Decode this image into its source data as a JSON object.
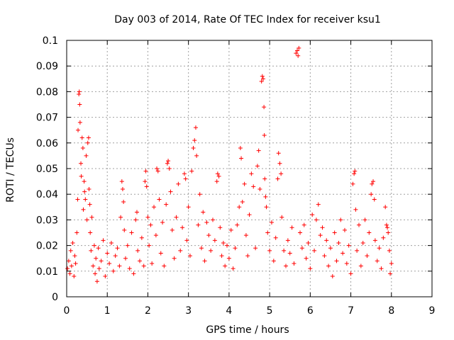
{
  "chart_data": {
    "type": "scatter",
    "title": "Day 003 of 2014, Rate Of TEC Index for receiver ksu1",
    "xlabel": "GPS time / hours",
    "ylabel": "ROTI / TECUs",
    "xlim": [
      0,
      9
    ],
    "ylim": [
      0,
      0.1
    ],
    "x_ticks": [
      "0",
      "1",
      "2",
      "3",
      "4",
      "5",
      "6",
      "7",
      "8",
      "9"
    ],
    "y_ticks": [
      "0",
      "0.01",
      "0.02",
      "0.03",
      "0.04",
      "0.05",
      "0.06",
      "0.07",
      "0.08",
      "0.09",
      "0.1"
    ],
    "grid": true,
    "marker": "+",
    "color": "#ff0000",
    "series": [
      {
        "name": "ROTI",
        "points": [
          [
            0.02,
            0.011
          ],
          [
            0.05,
            0.014
          ],
          [
            0.08,
            0.009
          ],
          [
            0.1,
            0.018
          ],
          [
            0.12,
            0.012
          ],
          [
            0.15,
            0.021
          ],
          [
            0.18,
            0.008
          ],
          [
            0.2,
            0.016
          ],
          [
            0.22,
            0.013
          ],
          [
            0.25,
            0.025
          ],
          [
            0.27,
            0.038
          ],
          [
            0.28,
            0.065
          ],
          [
            0.3,
            0.079
          ],
          [
            0.31,
            0.08
          ],
          [
            0.32,
            0.075
          ],
          [
            0.33,
            0.068
          ],
          [
            0.35,
            0.052
          ],
          [
            0.36,
            0.047
          ],
          [
            0.38,
            0.062
          ],
          [
            0.4,
            0.058
          ],
          [
            0.41,
            0.034
          ],
          [
            0.43,
            0.045
          ],
          [
            0.44,
            0.041
          ],
          [
            0.46,
            0.038
          ],
          [
            0.48,
            0.055
          ],
          [
            0.5,
            0.03
          ],
          [
            0.52,
            0.06
          ],
          [
            0.54,
            0.062
          ],
          [
            0.55,
            0.042
          ],
          [
            0.57,
            0.036
          ],
          [
            0.58,
            0.025
          ],
          [
            0.6,
            0.018
          ],
          [
            0.62,
            0.031
          ],
          [
            0.65,
            0.012
          ],
          [
            0.68,
            0.02
          ],
          [
            0.7,
            0.009
          ],
          [
            0.72,
            0.015
          ],
          [
            0.75,
            0.006
          ],
          [
            0.78,
            0.019
          ],
          [
            0.8,
            0.011
          ],
          [
            0.85,
            0.014
          ],
          [
            0.9,
            0.022
          ],
          [
            0.95,
            0.008
          ],
          [
            1.0,
            0.017
          ],
          [
            1.05,
            0.013
          ],
          [
            1.1,
            0.021
          ],
          [
            1.15,
            0.01
          ],
          [
            1.2,
            0.016
          ],
          [
            1.25,
            0.019
          ],
          [
            1.3,
            0.012
          ],
          [
            1.33,
            0.031
          ],
          [
            1.36,
            0.045
          ],
          [
            1.38,
            0.042
          ],
          [
            1.4,
            0.037
          ],
          [
            1.42,
            0.026
          ],
          [
            1.45,
            0.015
          ],
          [
            1.5,
            0.02
          ],
          [
            1.55,
            0.011
          ],
          [
            1.6,
            0.025
          ],
          [
            1.65,
            0.009
          ],
          [
            1.7,
            0.03
          ],
          [
            1.73,
            0.033
          ],
          [
            1.75,
            0.018
          ],
          [
            1.8,
            0.014
          ],
          [
            1.85,
            0.023
          ],
          [
            1.9,
            0.012
          ],
          [
            1.93,
            0.045
          ],
          [
            1.95,
            0.049
          ],
          [
            1.97,
            0.043
          ],
          [
            2.0,
            0.031
          ],
          [
            2.03,
            0.02
          ],
          [
            2.07,
            0.028
          ],
          [
            2.1,
            0.013
          ],
          [
            2.15,
            0.035
          ],
          [
            2.2,
            0.024
          ],
          [
            2.22,
            0.05
          ],
          [
            2.25,
            0.049
          ],
          [
            2.28,
            0.038
          ],
          [
            2.32,
            0.017
          ],
          [
            2.36,
            0.029
          ],
          [
            2.4,
            0.012
          ],
          [
            2.45,
            0.036
          ],
          [
            2.48,
            0.052
          ],
          [
            2.5,
            0.053
          ],
          [
            2.53,
            0.05
          ],
          [
            2.56,
            0.041
          ],
          [
            2.6,
            0.026
          ],
          [
            2.65,
            0.015
          ],
          [
            2.7,
            0.031
          ],
          [
            2.75,
            0.044
          ],
          [
            2.8,
            0.018
          ],
          [
            2.85,
            0.027
          ],
          [
            2.9,
            0.048
          ],
          [
            2.93,
            0.046
          ],
          [
            2.96,
            0.022
          ],
          [
            3.0,
            0.035
          ],
          [
            3.04,
            0.016
          ],
          [
            3.08,
            0.049
          ],
          [
            3.12,
            0.058
          ],
          [
            3.15,
            0.061
          ],
          [
            3.18,
            0.066
          ],
          [
            3.2,
            0.055
          ],
          [
            3.24,
            0.028
          ],
          [
            3.28,
            0.04
          ],
          [
            3.32,
            0.019
          ],
          [
            3.36,
            0.033
          ],
          [
            3.4,
            0.014
          ],
          [
            3.45,
            0.029
          ],
          [
            3.5,
            0.024
          ],
          [
            3.55,
            0.018
          ],
          [
            3.6,
            0.03
          ],
          [
            3.65,
            0.022
          ],
          [
            3.7,
            0.045
          ],
          [
            3.72,
            0.048
          ],
          [
            3.75,
            0.047
          ],
          [
            3.78,
            0.027
          ],
          [
            3.82,
            0.016
          ],
          [
            3.86,
            0.021
          ],
          [
            3.9,
            0.012
          ],
          [
            3.95,
            0.02
          ],
          [
            4.0,
            0.015
          ],
          [
            4.05,
            0.026
          ],
          [
            4.1,
            0.011
          ],
          [
            4.15,
            0.019
          ],
          [
            4.2,
            0.028
          ],
          [
            4.25,
            0.035
          ],
          [
            4.28,
            0.058
          ],
          [
            4.3,
            0.054
          ],
          [
            4.33,
            0.037
          ],
          [
            4.38,
            0.044
          ],
          [
            4.42,
            0.024
          ],
          [
            4.46,
            0.016
          ],
          [
            4.5,
            0.032
          ],
          [
            4.55,
            0.048
          ],
          [
            4.6,
            0.043
          ],
          [
            4.65,
            0.019
          ],
          [
            4.7,
            0.051
          ],
          [
            4.73,
            0.057
          ],
          [
            4.76,
            0.042
          ],
          [
            4.8,
            0.084
          ],
          [
            4.82,
            0.086
          ],
          [
            4.84,
            0.085
          ],
          [
            4.86,
            0.074
          ],
          [
            4.87,
            0.063
          ],
          [
            4.88,
            0.046
          ],
          [
            4.9,
            0.039
          ],
          [
            4.92,
            0.035
          ],
          [
            4.95,
            0.025
          ],
          [
            5.0,
            0.018
          ],
          [
            5.05,
            0.029
          ],
          [
            5.1,
            0.014
          ],
          [
            5.15,
            0.023
          ],
          [
            5.2,
            0.046
          ],
          [
            5.22,
            0.056
          ],
          [
            5.25,
            0.052
          ],
          [
            5.28,
            0.048
          ],
          [
            5.3,
            0.031
          ],
          [
            5.35,
            0.018
          ],
          [
            5.4,
            0.012
          ],
          [
            5.45,
            0.022
          ],
          [
            5.5,
            0.017
          ],
          [
            5.55,
            0.027
          ],
          [
            5.6,
            0.013
          ],
          [
            5.65,
            0.095
          ],
          [
            5.68,
            0.096
          ],
          [
            5.7,
            0.094
          ],
          [
            5.72,
            0.097
          ],
          [
            5.75,
            0.025
          ],
          [
            5.8,
            0.019
          ],
          [
            5.85,
            0.028
          ],
          [
            5.9,
            0.015
          ],
          [
            5.95,
            0.021
          ],
          [
            6.0,
            0.011
          ],
          [
            6.05,
            0.032
          ],
          [
            6.1,
            0.018
          ],
          [
            6.15,
            0.03
          ],
          [
            6.2,
            0.036
          ],
          [
            6.25,
            0.024
          ],
          [
            6.3,
            0.027
          ],
          [
            6.35,
            0.016
          ],
          [
            6.4,
            0.022
          ],
          [
            6.45,
            0.012
          ],
          [
            6.5,
            0.019
          ],
          [
            6.55,
            0.008
          ],
          [
            6.6,
            0.025
          ],
          [
            6.65,
            0.014
          ],
          [
            6.7,
            0.021
          ],
          [
            6.75,
            0.03
          ],
          [
            6.8,
            0.017
          ],
          [
            6.85,
            0.026
          ],
          [
            6.9,
            0.013
          ],
          [
            6.95,
            0.02
          ],
          [
            7.0,
            0.009
          ],
          [
            7.05,
            0.044
          ],
          [
            7.08,
            0.048
          ],
          [
            7.1,
            0.049
          ],
          [
            7.12,
            0.034
          ],
          [
            7.15,
            0.018
          ],
          [
            7.2,
            0.028
          ],
          [
            7.25,
            0.012
          ],
          [
            7.3,
            0.021
          ],
          [
            7.35,
            0.03
          ],
          [
            7.4,
            0.016
          ],
          [
            7.45,
            0.025
          ],
          [
            7.5,
            0.04
          ],
          [
            7.52,
            0.044
          ],
          [
            7.55,
            0.045
          ],
          [
            7.58,
            0.038
          ],
          [
            7.6,
            0.022
          ],
          [
            7.65,
            0.014
          ],
          [
            7.7,
            0.019
          ],
          [
            7.75,
            0.011
          ],
          [
            7.8,
            0.023
          ],
          [
            7.85,
            0.035
          ],
          [
            7.88,
            0.028
          ],
          [
            7.9,
            0.027
          ],
          [
            7.92,
            0.025
          ],
          [
            7.95,
            0.018
          ],
          [
            7.97,
            0.009
          ],
          [
            8.0,
            0.013
          ]
        ]
      }
    ]
  }
}
